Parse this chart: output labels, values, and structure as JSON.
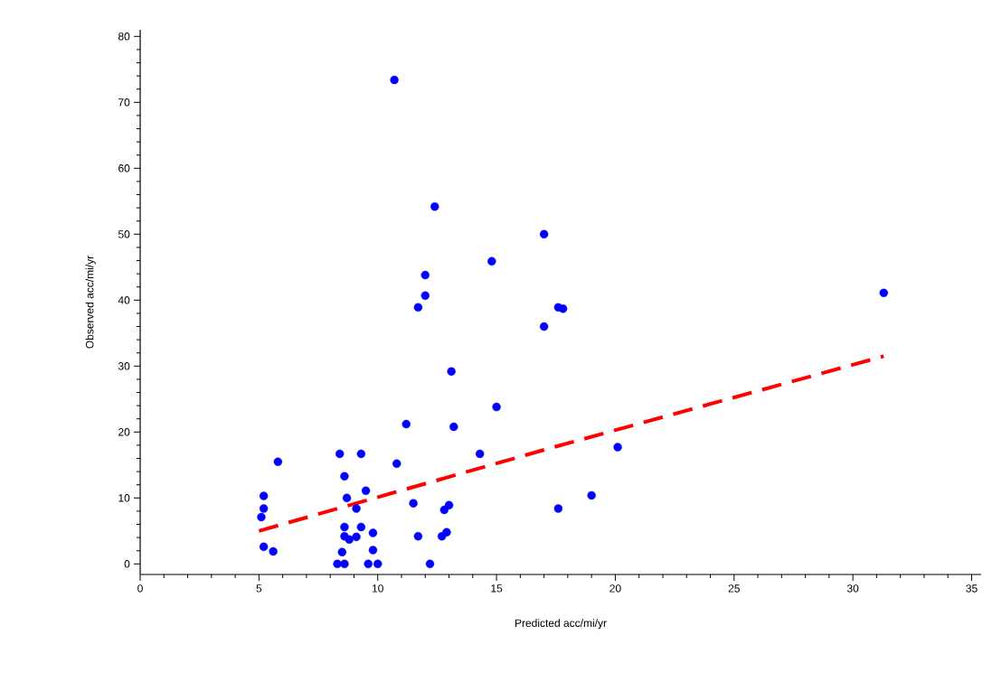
{
  "chart_data": {
    "type": "scatter",
    "xlabel": "Predicted acc/mi/yr",
    "ylabel": "Observed acc/mi/yr",
    "xlim": [
      0,
      35.4
    ],
    "ylim": [
      -1.6,
      81
    ],
    "xticks": [
      0,
      5,
      10,
      15,
      20,
      25,
      30,
      35
    ],
    "yticks": [
      0,
      10,
      20,
      30,
      40,
      50,
      60,
      70,
      80
    ],
    "grid": false,
    "series": [
      {
        "color": "#0000ff",
        "marker": "circle",
        "x": [
          10.7,
          12.4,
          17.0,
          14.8,
          12.0,
          12.0,
          11.7,
          17.0,
          13.1,
          15.0,
          31.3,
          17.6,
          17.8,
          20.1,
          19.0,
          17.6,
          11.2,
          10.8,
          11.5,
          11.7,
          12.7,
          12.9,
          12.8,
          13.0,
          13.2,
          14.3,
          12.2,
          5.8,
          5.2,
          5.2,
          5.1,
          5.2,
          5.6,
          8.4,
          9.3,
          8.6,
          8.7,
          9.5,
          9.1,
          8.6,
          8.6,
          8.8,
          9.1,
          9.3,
          9.8,
          8.5,
          9.8,
          8.3,
          8.6,
          9.6,
          10.0
        ],
        "values": [
          73.4,
          54.2,
          50.0,
          45.9,
          43.8,
          40.7,
          38.9,
          36.0,
          29.2,
          23.8,
          41.1,
          38.9,
          38.7,
          17.7,
          10.4,
          8.4,
          21.2,
          15.2,
          9.2,
          4.2,
          4.2,
          4.8,
          8.2,
          8.9,
          20.8,
          16.7,
          0,
          15.5,
          10.3,
          8.4,
          7.1,
          2.6,
          1.9,
          16.7,
          16.7,
          13.3,
          10.0,
          11.1,
          8.4,
          5.6,
          4.2,
          3.7,
          4.1,
          5.6,
          4.7,
          1.8,
          2.1,
          0,
          0,
          0,
          0
        ]
      },
      {
        "type": "line",
        "color": "#ff0000",
        "marker": "none",
        "line_style": "dashed",
        "x": [
          5.0,
          17.3,
          31.3
        ],
        "values": [
          5.0,
          17.6,
          31.5
        ]
      }
    ]
  }
}
